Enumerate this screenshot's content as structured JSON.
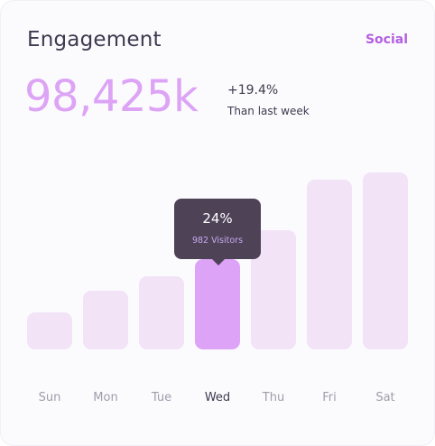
{
  "card": {
    "title": "Engagement",
    "filter_label": "Social",
    "total": "98,425k",
    "change": "+19.4%",
    "change_caption": "Than last week"
  },
  "tooltip": {
    "percent": "24%",
    "visitors": "982 Visitors"
  },
  "colors": {
    "accent": "#b45ee0",
    "bar": "#f2e3f7",
    "bar_active": "#dca3f6",
    "tooltip_bg": "#4e4257"
  },
  "chart_data": {
    "type": "bar",
    "categories": [
      "Sun",
      "Mon",
      "Tue",
      "Wed",
      "Thu",
      "Fri",
      "Sat"
    ],
    "values": [
      41,
      65,
      81,
      100,
      132,
      188,
      196
    ],
    "active_index": 3,
    "ylim": [
      0,
      196
    ]
  }
}
